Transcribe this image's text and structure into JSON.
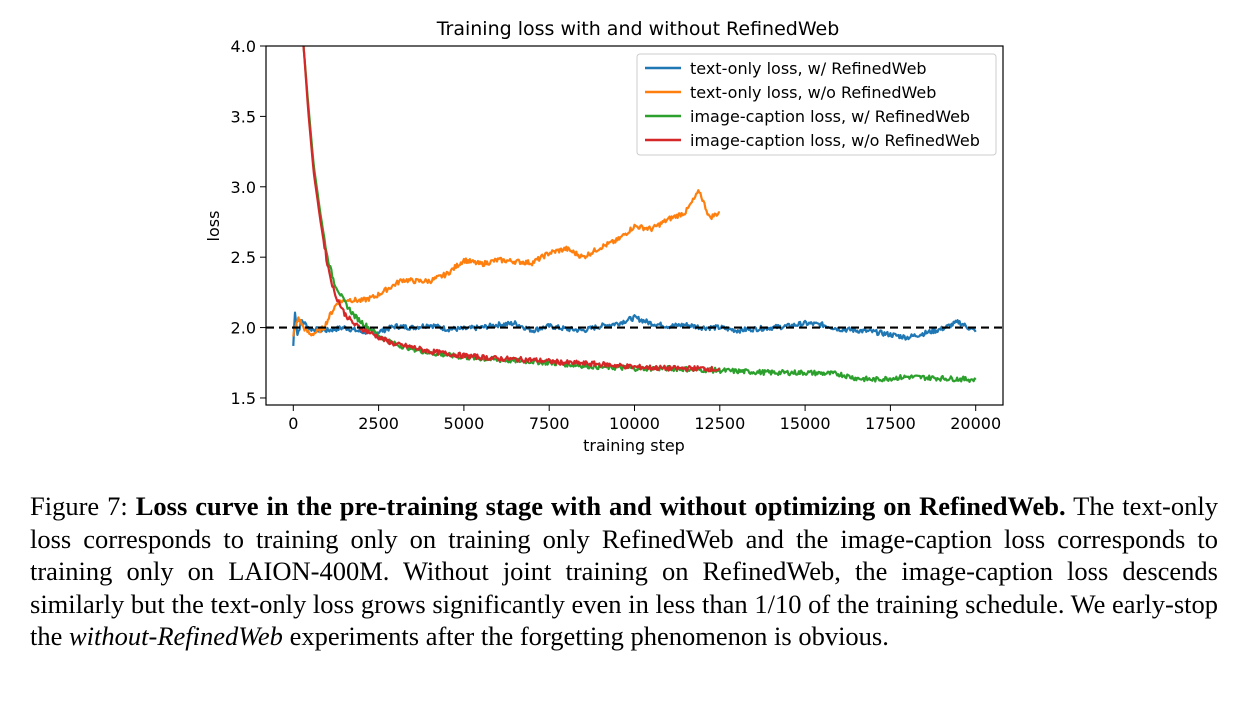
{
  "chart_data": {
    "type": "line",
    "title": "Training loss with and without RefinedWeb",
    "xlabel": "training step",
    "ylabel": "loss",
    "xlim": [
      -800,
      20800
    ],
    "ylim": [
      1.45,
      4.0
    ],
    "xticks": [
      0,
      2500,
      5000,
      7500,
      10000,
      12500,
      15000,
      17500,
      20000
    ],
    "xtick_labels": [
      "0",
      "2500",
      "5000",
      "7500",
      "10000",
      "12500",
      "15000",
      "17500",
      "20000"
    ],
    "yticks": [
      1.5,
      2.0,
      2.5,
      3.0,
      3.5,
      4.0
    ],
    "ytick_labels": [
      "1.5",
      "2.0",
      "2.5",
      "3.0",
      "3.5",
      "4.0"
    ],
    "grid": false,
    "legend_position": "top-right",
    "reference_line": {
      "y": 2.0,
      "style": "dashed",
      "color": "#000000"
    },
    "series": [
      {
        "name": "text-only loss, w/ RefinedWeb",
        "color": "#1f77b4",
        "points": [
          [
            0,
            1.87
          ],
          [
            50,
            2.12
          ],
          [
            120,
            1.95
          ],
          [
            250,
            2.05
          ],
          [
            500,
            1.99
          ],
          [
            1000,
            1.98
          ],
          [
            1500,
            2.0
          ],
          [
            2000,
            1.97
          ],
          [
            2500,
            1.97
          ],
          [
            3000,
            2.01
          ],
          [
            3500,
            2.0
          ],
          [
            4000,
            2.02
          ],
          [
            4500,
            1.99
          ],
          [
            5000,
            1.99
          ],
          [
            5500,
            2.0
          ],
          [
            6000,
            2.02
          ],
          [
            6500,
            2.03
          ],
          [
            7000,
            1.98
          ],
          [
            7500,
            2.01
          ],
          [
            8000,
            1.99
          ],
          [
            8500,
            1.98
          ],
          [
            9000,
            2.01
          ],
          [
            9500,
            2.03
          ],
          [
            10000,
            2.07
          ],
          [
            10500,
            2.03
          ],
          [
            11000,
            2.01
          ],
          [
            11500,
            2.02
          ],
          [
            12000,
            2.0
          ],
          [
            12500,
            2.0
          ],
          [
            13000,
            1.98
          ],
          [
            13500,
            1.99
          ],
          [
            14000,
            2.0
          ],
          [
            14500,
            2.01
          ],
          [
            15000,
            2.03
          ],
          [
            15500,
            2.02
          ],
          [
            16000,
            1.99
          ],
          [
            16500,
            1.98
          ],
          [
            17000,
            1.97
          ],
          [
            17500,
            1.95
          ],
          [
            18000,
            1.93
          ],
          [
            18500,
            1.96
          ],
          [
            19000,
            1.99
          ],
          [
            19500,
            2.04
          ],
          [
            20000,
            1.97
          ]
        ]
      },
      {
        "name": "text-only loss, w/o RefinedWeb",
        "color": "#ff7f0e",
        "points": [
          [
            0,
            1.95
          ],
          [
            150,
            2.07
          ],
          [
            300,
            2.0
          ],
          [
            500,
            1.95
          ],
          [
            700,
            1.97
          ],
          [
            900,
            2.0
          ],
          [
            1100,
            2.1
          ],
          [
            1300,
            2.18
          ],
          [
            1600,
            2.2
          ],
          [
            2000,
            2.19
          ],
          [
            2400,
            2.22
          ],
          [
            2800,
            2.28
          ],
          [
            3200,
            2.34
          ],
          [
            3600,
            2.33
          ],
          [
            4000,
            2.33
          ],
          [
            4500,
            2.38
          ],
          [
            5000,
            2.48
          ],
          [
            5500,
            2.45
          ],
          [
            6000,
            2.48
          ],
          [
            6500,
            2.47
          ],
          [
            7000,
            2.46
          ],
          [
            7500,
            2.53
          ],
          [
            8000,
            2.56
          ],
          [
            8500,
            2.5
          ],
          [
            9000,
            2.57
          ],
          [
            9500,
            2.62
          ],
          [
            10000,
            2.72
          ],
          [
            10500,
            2.7
          ],
          [
            11000,
            2.77
          ],
          [
            11500,
            2.82
          ],
          [
            11900,
            2.97
          ],
          [
            12200,
            2.78
          ],
          [
            12500,
            2.82
          ]
        ]
      },
      {
        "name": "image-caption loss, w/ RefinedWeb",
        "color": "#2ca02c",
        "points": [
          [
            300,
            4.0
          ],
          [
            450,
            3.55
          ],
          [
            600,
            3.15
          ],
          [
            800,
            2.8
          ],
          [
            1000,
            2.5
          ],
          [
            1200,
            2.32
          ],
          [
            1500,
            2.18
          ],
          [
            1800,
            2.08
          ],
          [
            2200,
            2.0
          ],
          [
            2600,
            1.93
          ],
          [
            3000,
            1.88
          ],
          [
            3500,
            1.85
          ],
          [
            4000,
            1.82
          ],
          [
            5000,
            1.79
          ],
          [
            6000,
            1.77
          ],
          [
            7000,
            1.76
          ],
          [
            8000,
            1.74
          ],
          [
            9000,
            1.72
          ],
          [
            10000,
            1.71
          ],
          [
            11000,
            1.71
          ],
          [
            12000,
            1.7
          ],
          [
            13000,
            1.69
          ],
          [
            14000,
            1.68
          ],
          [
            15000,
            1.68
          ],
          [
            16000,
            1.67
          ],
          [
            16500,
            1.64
          ],
          [
            17000,
            1.63
          ],
          [
            17500,
            1.64
          ],
          [
            18000,
            1.65
          ],
          [
            19000,
            1.64
          ],
          [
            20000,
            1.63
          ]
        ]
      },
      {
        "name": "image-caption loss, w/o RefinedWeb",
        "color": "#d62728",
        "points": [
          [
            300,
            4.0
          ],
          [
            450,
            3.5
          ],
          [
            600,
            3.1
          ],
          [
            800,
            2.75
          ],
          [
            1000,
            2.45
          ],
          [
            1200,
            2.25
          ],
          [
            1500,
            2.1
          ],
          [
            1800,
            2.02
          ],
          [
            2200,
            1.97
          ],
          [
            2600,
            1.92
          ],
          [
            3000,
            1.88
          ],
          [
            3500,
            1.86
          ],
          [
            4000,
            1.83
          ],
          [
            5000,
            1.8
          ],
          [
            6000,
            1.78
          ],
          [
            7000,
            1.77
          ],
          [
            8000,
            1.75
          ],
          [
            9000,
            1.74
          ],
          [
            10000,
            1.72
          ],
          [
            11000,
            1.71
          ],
          [
            12000,
            1.71
          ],
          [
            12500,
            1.7
          ]
        ]
      }
    ]
  },
  "caption": {
    "prefix": "Figure 7: ",
    "bold": "Loss curve in the pre-training stage with and without optimizing on RefinedWeb.",
    "text1": " The text-only loss corresponds to training only on training only RefinedWeb and the image-caption loss corresponds to training only on LAION-400M. Without joint training on RefinedWeb, the image-caption loss descends similarly but the text-only loss grows significantly even in less than 1/10 of the training schedule. We early-stop the ",
    "italic": "without-RefinedWeb",
    "text2": " experiments after the forgetting phenomenon is obvious."
  }
}
